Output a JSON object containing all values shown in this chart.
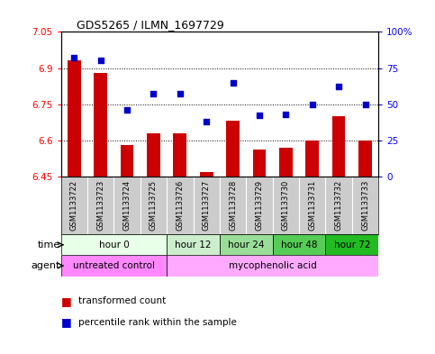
{
  "title": "GDS5265 / ILMN_1697729",
  "samples": [
    "GSM1133722",
    "GSM1133723",
    "GSM1133724",
    "GSM1133725",
    "GSM1133726",
    "GSM1133727",
    "GSM1133728",
    "GSM1133729",
    "GSM1133730",
    "GSM1133731",
    "GSM1133732",
    "GSM1133733"
  ],
  "transformed_count": [
    6.93,
    6.88,
    6.58,
    6.63,
    6.63,
    6.47,
    6.68,
    6.56,
    6.57,
    6.6,
    6.7,
    6.6
  ],
  "percentile_rank": [
    82,
    80,
    46,
    57,
    57,
    38,
    65,
    42,
    43,
    50,
    62,
    50
  ],
  "ylim_left": [
    6.45,
    7.05
  ],
  "ylim_right": [
    0,
    100
  ],
  "yticks_left": [
    6.45,
    6.6,
    6.75,
    6.9,
    7.05
  ],
  "yticks_right": [
    0,
    25,
    50,
    75,
    100
  ],
  "bar_color": "#cc0000",
  "scatter_color": "#0000cc",
  "bar_bottom": 6.45,
  "time_groups": [
    {
      "label": "hour 0",
      "start": 0,
      "end": 4,
      "color": "#e8ffe8"
    },
    {
      "label": "hour 12",
      "start": 4,
      "end": 6,
      "color": "#cceecc"
    },
    {
      "label": "hour 24",
      "start": 6,
      "end": 8,
      "color": "#99dd99"
    },
    {
      "label": "hour 48",
      "start": 8,
      "end": 10,
      "color": "#55cc55"
    },
    {
      "label": "hour 72",
      "start": 10,
      "end": 12,
      "color": "#22bb22"
    }
  ],
  "agent_untreated_color": "#ff88ff",
  "agent_myco_color": "#ffaaff",
  "legend_bar_label": "transformed count",
  "legend_scatter_label": "percentile rank within the sample",
  "sample_bg_color": "#cccccc",
  "chart_bg_color": "#ffffff",
  "border_color": "#000000"
}
